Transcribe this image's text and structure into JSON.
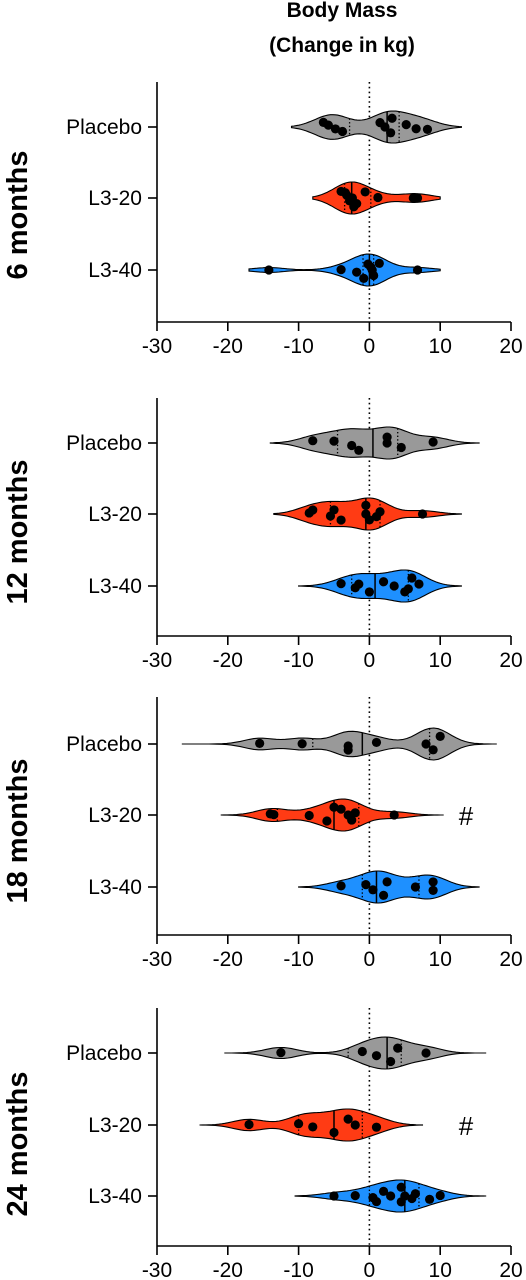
{
  "colors": {
    "Placebo": "#999999",
    "L3-20": "#ff3b14",
    "L3-40": "#1e90ff",
    "point": "#000000"
  },
  "chart_data": {
    "type": "violin",
    "title": "Body Mass\n(Change in kg)",
    "xlabel": "Body Mass (Change in kg)",
    "xlim": [
      -30,
      20
    ],
    "xticks": [
      -30,
      -20,
      -10,
      0,
      10,
      20
    ],
    "reference_line": 0,
    "categories": [
      "Placebo",
      "L3-20",
      "L3-40"
    ],
    "panels": [
      {
        "label": "6 months",
        "groups": [
          {
            "name": "Placebo",
            "range": [
              -11,
              13
            ],
            "median": 2.5,
            "quartiles": [
              -2.8,
              4.2
            ],
            "points": [
              -6.5,
              -5.8,
              -4.8,
              -3.8,
              1.5,
              2.2,
              3.0,
              3.2,
              5.2,
              6.6,
              8.2
            ]
          },
          {
            "name": "L3-20",
            "range": [
              -8,
              10
            ],
            "median": -2.5,
            "quartiles": [
              -3.5,
              0.2
            ],
            "points": [
              -4.0,
              -3.2,
              -2.8,
              -2.2,
              -3.4,
              -2.4,
              -1.8,
              -0.6,
              1.2,
              6.2,
              6.8
            ]
          },
          {
            "name": "L3-40",
            "range": [
              -17,
              10
            ],
            "median": 0.0,
            "quartiles": [
              -0.9,
              0.6
            ],
            "points": [
              -14.2,
              -4.0,
              -1.8,
              -0.8,
              -0.2,
              0.4,
              0.6,
              1.4,
              0.2,
              6.8
            ]
          }
        ],
        "annotation": ""
      },
      {
        "label": "12 months",
        "groups": [
          {
            "name": "Placebo",
            "range": [
              -14,
              15.5
            ],
            "median": 0.5,
            "quartiles": [
              -4.5,
              4.0
            ],
            "points": [
              -8.0,
              -5.0,
              -2.5,
              -1.5,
              2.5,
              2.5,
              4.5,
              9.0
            ]
          },
          {
            "name": "L3-20",
            "range": [
              -13.5,
              13
            ],
            "median": -0.5,
            "quartiles": [
              -5.5,
              1.5
            ],
            "points": [
              -8.0,
              -8.5,
              -5.5,
              -4.0,
              -5.0,
              -0.5,
              0.0,
              -0.5,
              1.5,
              1.0,
              7.5
            ]
          },
          {
            "name": "L3-40",
            "range": [
              -10,
              13
            ],
            "median": 0.8,
            "quartiles": [
              -2.5,
              5.5
            ],
            "points": [
              -4.0,
              -1.5,
              -2.0,
              0.0,
              2.0,
              3.5,
              5.0,
              6.0,
              7.0,
              5.5
            ]
          }
        ],
        "annotation": ""
      },
      {
        "label": "18 months",
        "groups": [
          {
            "name": "Placebo",
            "range": [
              -26.5,
              18
            ],
            "median": -1.0,
            "quartiles": [
              -8.0,
              8.5
            ],
            "points": [
              -15.5,
              -9.5,
              -3.0,
              -3.0,
              1.0,
              8.0,
              9.0,
              10.0
            ]
          },
          {
            "name": "L3-20",
            "range": [
              -21,
              10.5
            ],
            "median": -5.0,
            "quartiles": [
              -13.0,
              -1.5
            ],
            "points": [
              -14.0,
              -13.5,
              -8.5,
              -6.0,
              -4.0,
              -3.0,
              -2.5,
              -5.0,
              -2.0,
              3.5
            ]
          },
          {
            "name": "L3-40",
            "range": [
              -10,
              15.5
            ],
            "median": 1.0,
            "quartiles": [
              -1.0,
              7.0
            ],
            "points": [
              -4.0,
              -0.5,
              0.5,
              2.0,
              2.5,
              6.5,
              9.0,
              9.0
            ]
          }
        ],
        "annotation": "#"
      },
      {
        "label": "24 months",
        "groups": [
          {
            "name": "Placebo",
            "range": [
              -20.5,
              16.5
            ],
            "median": 2.5,
            "quartiles": [
              -3.0,
              4.5
            ],
            "points": [
              -12.5,
              -1.0,
              1.0,
              3.0,
              4.0,
              8.0
            ]
          },
          {
            "name": "L3-20",
            "range": [
              -24,
              7.5
            ],
            "median": -5.0,
            "quartiles": [
              -10.0,
              -1.0
            ],
            "points": [
              -17.0,
              -10.0,
              -8.0,
              -5.0,
              -3.0,
              -2.0,
              1.0
            ]
          },
          {
            "name": "L3-40",
            "range": [
              -10.5,
              16.5
            ],
            "median": 5.0,
            "quartiles": [
              0.0,
              7.0
            ],
            "points": [
              -5.0,
              -2.0,
              0.5,
              1.0,
              2.0,
              3.0,
              4.5,
              4.5,
              6.5,
              6.0,
              8.5,
              10.0,
              5.0
            ]
          }
        ],
        "annotation": "#"
      }
    ]
  }
}
